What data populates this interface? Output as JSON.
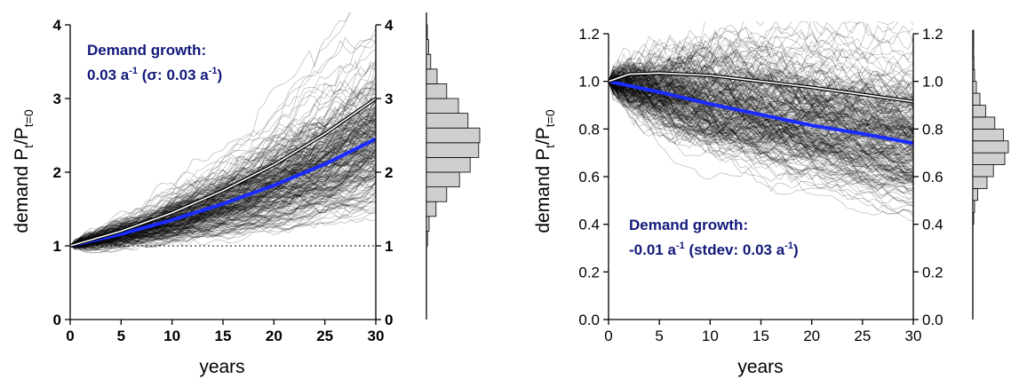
{
  "chart_data": [
    {
      "type": "line",
      "description_text": {
        "annotation_line1": "Demand growth:",
        "annotation_line2_prefix": "0.03 a",
        "annotation_line2_sup": "-1",
        "annotation_line2_middle": " (σ: 0.03 a",
        "annotation_line2_sup2": "-1",
        "annotation_line2_suffix": ")"
      },
      "xlabel": "years",
      "ylabel_main": "demand P",
      "ylabel_sub1": "t",
      "ylabel_mid": "/P",
      "ylabel_sub2": "t=0",
      "xlim": [
        0,
        30
      ],
      "ylim": [
        0,
        4
      ],
      "xticks": [
        "0",
        "5",
        "10",
        "15",
        "20",
        "25",
        "30"
      ],
      "yticks": [
        "0",
        "1",
        "2",
        "3",
        "4"
      ],
      "y_tick_values": [
        0,
        1,
        2,
        3,
        4
      ],
      "tick_style": "bold",
      "reference_line_y": 1,
      "growth_rate": 0.03,
      "sigma": 0.03,
      "series": [
        {
          "role": "median",
          "color": "#1a2bff",
          "x": [
            0,
            5,
            10,
            15,
            20,
            25,
            30
          ],
          "y": [
            1.0,
            1.16,
            1.35,
            1.57,
            1.82,
            2.11,
            2.45
          ]
        },
        {
          "role": "mean",
          "color": "#ffffff",
          "x": [
            0,
            5,
            10,
            15,
            20,
            25,
            30
          ],
          "y": [
            1.0,
            1.2,
            1.45,
            1.75,
            2.1,
            2.52,
            3.0
          ]
        }
      ],
      "histogram": {
        "bin_edges": [
          1.0,
          1.2,
          1.4,
          1.6,
          1.8,
          2.0,
          2.2,
          2.4,
          2.6,
          2.8,
          3.0,
          3.2,
          3.4,
          3.6,
          3.8,
          4.0
        ],
        "relative_counts": [
          0.02,
          0.05,
          0.18,
          0.38,
          0.62,
          0.82,
          0.98,
          1.0,
          0.78,
          0.6,
          0.38,
          0.2,
          0.08,
          0.04,
          0.01
        ]
      }
    },
    {
      "type": "line",
      "description_text": {
        "annotation_line1": "Demand growth:",
        "annotation_line2_prefix": "-0.01 a",
        "annotation_line2_sup": "-1",
        "annotation_line2_middle": " (stdev: 0.03 a",
        "annotation_line2_sup2": "-1",
        "annotation_line2_suffix": ")"
      },
      "xlabel": "years",
      "ylabel_main": "demand P",
      "ylabel_sub1": "t",
      "ylabel_mid": "/P",
      "ylabel_sub2": "t=0",
      "xlim": [
        0,
        30
      ],
      "ylim": [
        0,
        1.2
      ],
      "xticks": [
        "0",
        "5",
        "10",
        "15",
        "20",
        "25",
        "30"
      ],
      "yticks": [
        "0.0",
        "0.2",
        "0.4",
        "0.6",
        "0.8",
        "1.0",
        "1.2"
      ],
      "y_tick_values": [
        0,
        0.2,
        0.4,
        0.6,
        0.8,
        1.0,
        1.2
      ],
      "tick_style": "normal",
      "reference_line_y": null,
      "growth_rate": -0.01,
      "sigma": 0.03,
      "series": [
        {
          "role": "median",
          "color": "#1a2bff",
          "x": [
            0,
            5,
            10,
            15,
            20,
            25,
            30
          ],
          "y": [
            1.0,
            0.955,
            0.905,
            0.86,
            0.815,
            0.78,
            0.74
          ]
        },
        {
          "role": "mean",
          "color": "#ffffff",
          "x": [
            0,
            2,
            5,
            10,
            15,
            20,
            25,
            30
          ],
          "y": [
            1.0,
            1.03,
            1.035,
            1.025,
            1.0,
            0.975,
            0.945,
            0.915
          ]
        }
      ],
      "histogram": {
        "bin_edges": [
          0.4,
          0.45,
          0.5,
          0.55,
          0.6,
          0.65,
          0.7,
          0.75,
          0.8,
          0.85,
          0.9,
          0.95,
          1.0,
          1.05,
          1.1,
          1.15,
          1.2,
          1.25
        ],
        "relative_counts": [
          0.02,
          0.05,
          0.14,
          0.4,
          0.58,
          0.9,
          1.0,
          0.86,
          0.62,
          0.36,
          0.2,
          0.1,
          0.05,
          0.03,
          0.02,
          0.01,
          0.01
        ]
      }
    }
  ]
}
